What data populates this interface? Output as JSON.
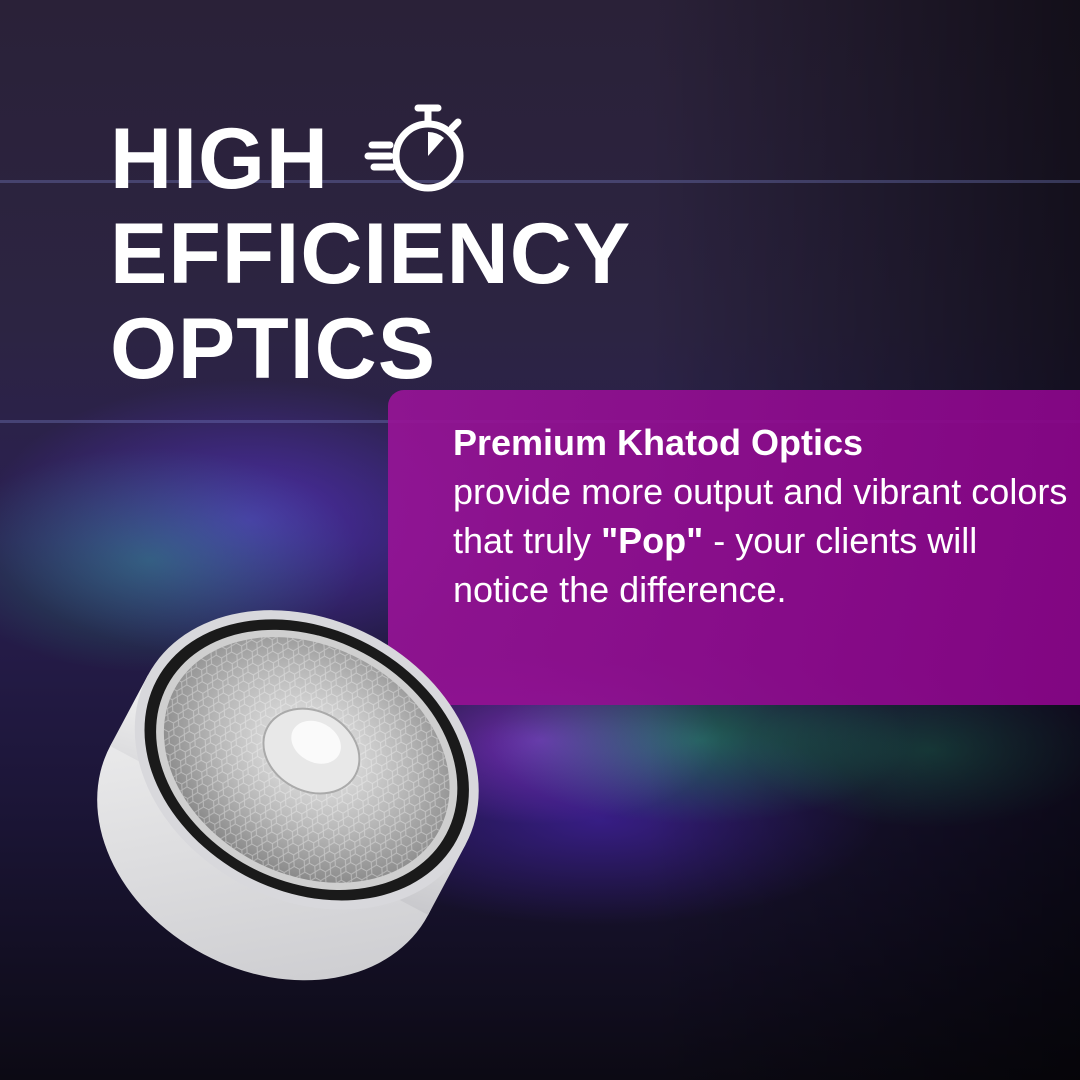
{
  "headline": {
    "line1": "HIGH",
    "line2": "EFFICIENCY",
    "line3": "OPTICS",
    "icon": "fast-stopwatch-icon"
  },
  "callout": {
    "bold": "Premium Khatod Optics",
    "text1": "provide more output and vibrant colors that truly ",
    "emph": "\"Pop\"",
    "text2": " - your clients will notice the difference."
  },
  "colors": {
    "callout_bg": "#8f0f8f",
    "text": "#ffffff"
  }
}
